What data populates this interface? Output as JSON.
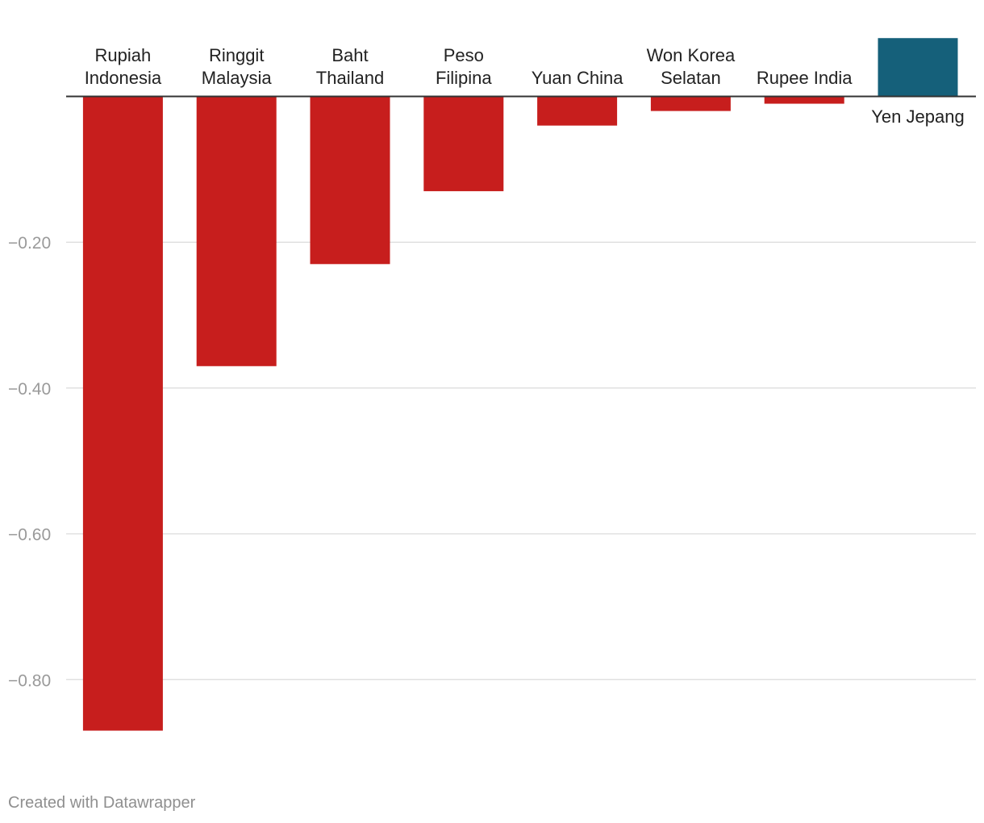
{
  "chart_data": {
    "type": "bar",
    "orientation": "vertical",
    "title": "",
    "xlabel": "",
    "ylabel": "",
    "categories": [
      [
        "Rupiah",
        "Indonesia"
      ],
      [
        "Ringgit",
        "Malaysia"
      ],
      [
        "Baht",
        "Thailand"
      ],
      [
        "Peso",
        "Filipina"
      ],
      [
        "Yuan China"
      ],
      [
        "Won Korea",
        "Selatan"
      ],
      [
        "Rupee India"
      ],
      [
        "Yen Jepang"
      ]
    ],
    "values": [
      -0.87,
      -0.37,
      -0.23,
      -0.13,
      -0.04,
      -0.02,
      -0.01,
      0.08
    ],
    "ylim": [
      -0.92,
      0.08
    ],
    "yticks": [
      -0.8,
      -0.6,
      -0.4,
      -0.2
    ],
    "ytick_labels": [
      "−0.80",
      "−0.60",
      "−0.40",
      "−0.20"
    ],
    "grid": true,
    "colors": {
      "negative": "#c71e1d",
      "positive": "#15607a",
      "grid": "#e0e0e0",
      "baseline": "#333333",
      "tick_text": "#9a9a9a",
      "label_text": "#222222"
    }
  },
  "footer": {
    "credit": "Created with Datawrapper"
  }
}
